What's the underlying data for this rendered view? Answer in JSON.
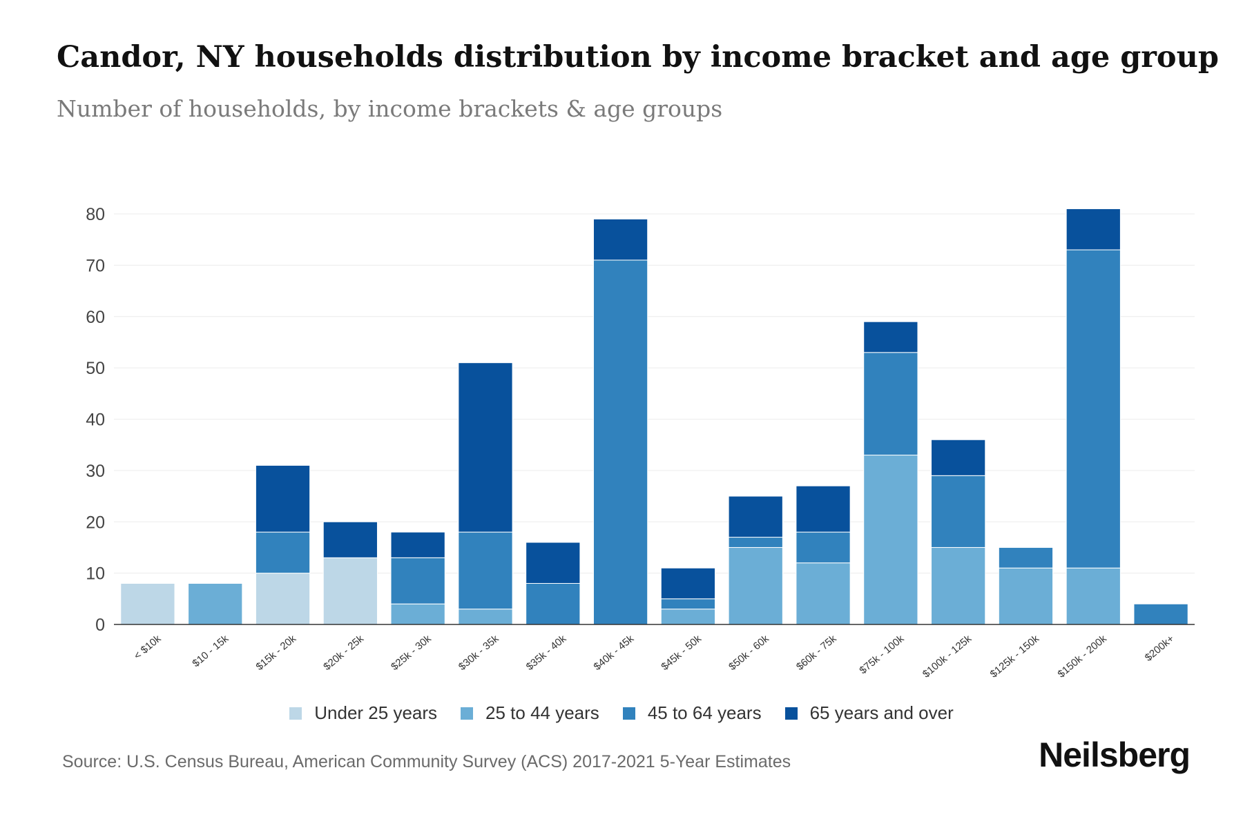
{
  "title": "Candor, NY households distribution by income bracket and age group",
  "subtitle": "Number of households, by income brackets & age groups",
  "source": "Source: U.S. Census Bureau, American Community Survey (ACS) 2017-2021 5-Year Estimates",
  "brand": "Neilsberg",
  "chart_data": {
    "type": "bar",
    "stacked": true,
    "title": "Candor, NY households distribution by income bracket and age group",
    "xlabel": "",
    "ylabel": "",
    "ylim": [
      0,
      80
    ],
    "yticks": [
      0,
      10,
      20,
      30,
      40,
      50,
      60,
      70,
      80
    ],
    "grid": true,
    "legend_position": "bottom",
    "categories": [
      "< $10k",
      "$10 - 15k",
      "$15k - 20k",
      "$20k - 25k",
      "$25k - 30k",
      "$30k - 35k",
      "$35k - 40k",
      "$40k - 45k",
      "$45k - 50k",
      "$50k - 60k",
      "$60k - 75k",
      "$75k - 100k",
      "$100k - 125k",
      "$125k - 150k",
      "$150k - 200k",
      "$200k+"
    ],
    "series": [
      {
        "name": "Under 25 years",
        "color": "#bdd7e7",
        "values": [
          8,
          0,
          10,
          13,
          0,
          0,
          0,
          0,
          0,
          0,
          0,
          0,
          0,
          0,
          0,
          0
        ]
      },
      {
        "name": "25 to 44 years",
        "color": "#6baed6",
        "values": [
          0,
          8,
          0,
          0,
          4,
          3,
          0,
          0,
          3,
          15,
          12,
          33,
          15,
          11,
          11,
          0
        ]
      },
      {
        "name": "45 to 64 years",
        "color": "#3182bd",
        "values": [
          0,
          0,
          8,
          0,
          9,
          15,
          8,
          71,
          2,
          2,
          6,
          20,
          14,
          4,
          62,
          4
        ]
      },
      {
        "name": "65 years and over",
        "color": "#08519c",
        "values": [
          0,
          0,
          13,
          7,
          5,
          33,
          8,
          8,
          6,
          8,
          9,
          6,
          7,
          0,
          8,
          0
        ]
      }
    ]
  }
}
